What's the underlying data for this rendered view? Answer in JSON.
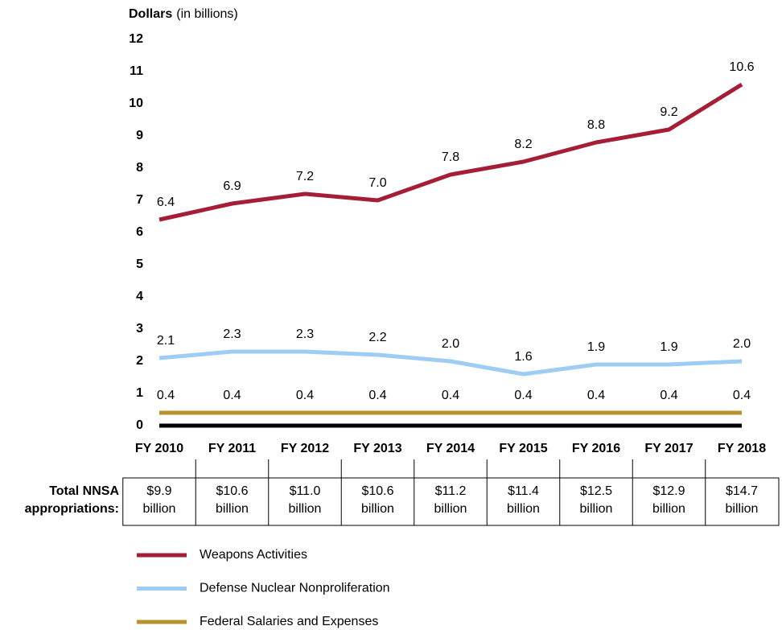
{
  "chart_data": {
    "type": "line",
    "y_label": "Dollars",
    "y_label_note": "(in billions)",
    "categories": [
      "FY 2010",
      "FY 2011",
      "FY 2012",
      "FY 2013",
      "FY 2014",
      "FY 2015",
      "FY 2016",
      "FY 2017",
      "FY 2018"
    ],
    "series": [
      {
        "name": "Weapons Activities",
        "color": "#a51e36",
        "values": [
          6.4,
          6.9,
          7.2,
          7.0,
          7.8,
          8.2,
          8.8,
          9.2,
          10.6
        ],
        "value_labels": [
          "6.4",
          "6.9",
          "7.2",
          "7.0",
          "7.8",
          "8.2",
          "8.8",
          "9.2",
          "10.6"
        ]
      },
      {
        "name": "Defense Nuclear Nonproliferation",
        "color": "#9dcdf5",
        "values": [
          2.1,
          2.3,
          2.3,
          2.2,
          2.0,
          1.6,
          1.9,
          1.9,
          2.0
        ],
        "value_labels": [
          "2.1",
          "2.3",
          "2.3",
          "2.2",
          "2.0",
          "1.6",
          "1.9",
          "1.9",
          "2.0"
        ]
      },
      {
        "name": "Federal Salaries and Expenses",
        "color": "#b8922c",
        "values": [
          0.4,
          0.4,
          0.4,
          0.4,
          0.4,
          0.4,
          0.4,
          0.4,
          0.4
        ],
        "value_labels": [
          "0.4",
          "0.4",
          "0.4",
          "0.4",
          "0.4",
          "0.4",
          "0.4",
          "0.4",
          "0.4"
        ]
      }
    ],
    "ylim": [
      0,
      12
    ],
    "yticks": [
      0,
      1,
      2,
      3,
      4,
      5,
      6,
      7,
      8,
      9,
      10,
      11,
      12
    ],
    "grid": false,
    "table": {
      "label": [
        "Total NNSA",
        "appropriations:"
      ],
      "cells": [
        [
          "$9.9",
          "billion"
        ],
        [
          "$10.6",
          "billion"
        ],
        [
          "$11.0",
          "billion"
        ],
        [
          "$10.6",
          "billion"
        ],
        [
          "$11.2",
          "billion"
        ],
        [
          "$11.4",
          "billion"
        ],
        [
          "$12.5",
          "billion"
        ],
        [
          "$12.9",
          "billion"
        ],
        [
          "$14.7",
          "billion"
        ]
      ]
    }
  }
}
